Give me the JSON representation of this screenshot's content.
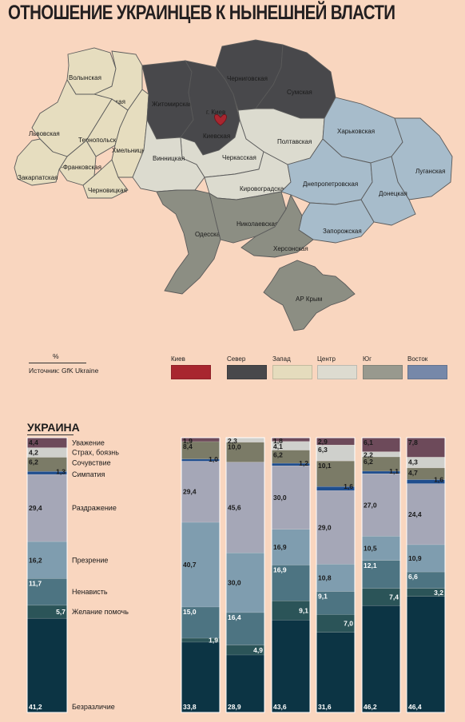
{
  "title": "ОТНОШЕНИЕ УКРАИНЦЕВ К НЫНЕШНЕЙ ВЛАСТИ",
  "source": {
    "unit": "%",
    "text": "Источник: GfK Ukraine"
  },
  "map": {
    "regions": [
      {
        "name": "Волынская",
        "group": "west"
      },
      {
        "name": "Ровенская",
        "group": "west"
      },
      {
        "name": "Львовская",
        "group": "west"
      },
      {
        "name": "Тернопольская",
        "group": "west"
      },
      {
        "name": "Хмельницкая",
        "group": "west"
      },
      {
        "name": "Ив.-Франковская",
        "group": "west"
      },
      {
        "name": "Закарпатская",
        "group": "west"
      },
      {
        "name": "Черновицкая",
        "group": "west"
      },
      {
        "name": "Житомирская",
        "group": "north"
      },
      {
        "name": "Черниговская",
        "group": "north"
      },
      {
        "name": "Сумская",
        "group": "north"
      },
      {
        "name": "Киевская",
        "group": "north"
      },
      {
        "name": "г. Киев",
        "group": "kiev"
      },
      {
        "name": "Полтавская",
        "group": "center"
      },
      {
        "name": "Черкасская",
        "group": "center"
      },
      {
        "name": "Винницкая",
        "group": "center"
      },
      {
        "name": "Кировоградская",
        "group": "center"
      },
      {
        "name": "Харьковская",
        "group": "east"
      },
      {
        "name": "Луганская",
        "group": "east"
      },
      {
        "name": "Днепропетровская",
        "group": "east"
      },
      {
        "name": "Донецкая",
        "group": "east"
      },
      {
        "name": "Запорожская",
        "group": "east"
      },
      {
        "name": "Одесская",
        "group": "south"
      },
      {
        "name": "Николаевская",
        "group": "south"
      },
      {
        "name": "Херсонская",
        "group": "south"
      },
      {
        "name": "АР Крым",
        "group": "south"
      }
    ]
  },
  "legend": [
    {
      "label": "Киев",
      "color": "#a8262f"
    },
    {
      "label": "Север",
      "color": "#48484b"
    },
    {
      "label": "Запад",
      "color": "#e5dcbd"
    },
    {
      "label": "Центр",
      "color": "#dddbd0"
    },
    {
      "label": "Юг",
      "color": "#98998e"
    },
    {
      "label": "Восток",
      "color": "#7688a9"
    }
  ],
  "chart_data": {
    "type": "bar",
    "stacked": true,
    "title": "УКРАИНА",
    "unit": "%",
    "series_order": [
      "Уважение",
      "Страх, боязнь",
      "Сочувствие",
      "Симпатия",
      "Раздражение",
      "Презрение",
      "Ненависть",
      "Желание помочь",
      "Безразличие"
    ],
    "series_colors": [
      "#6d4a5a",
      "#cfd0cc",
      "#7b7b67",
      "#1f4e8e",
      "#a5a7b7",
      "#7f9daf",
      "#4d7482",
      "#2b5458",
      "#0c3444"
    ],
    "ukraine": {
      "values": [
        4.4,
        4.2,
        6.2,
        1.3,
        29.4,
        16.2,
        11.7,
        5.7,
        41.2
      ]
    },
    "regions": [
      {
        "values": [
          1.9,
          0,
          8.4,
          1.0,
          29.4,
          40.7,
          15.0,
          1.9,
          33.8
        ]
      },
      {
        "values": [
          0,
          2.3,
          10.0,
          0,
          45.6,
          30.0,
          16.4,
          4.9,
          28.9
        ]
      },
      {
        "values": [
          1.8,
          4.1,
          6.2,
          1.2,
          30.0,
          16.9,
          16.9,
          9.1,
          43.6
        ]
      },
      {
        "values": [
          2.9,
          6.3,
          10.1,
          1.6,
          29.0,
          10.8,
          9.1,
          7.0,
          31.6
        ]
      },
      {
        "values": [
          6.1,
          2.2,
          6.2,
          1.1,
          27.0,
          10.5,
          12.1,
          7.4,
          46.2
        ]
      },
      {
        "values": [
          7.8,
          4.3,
          4.7,
          1.6,
          24.4,
          10.9,
          6.6,
          3.2,
          46.4
        ]
      }
    ]
  }
}
